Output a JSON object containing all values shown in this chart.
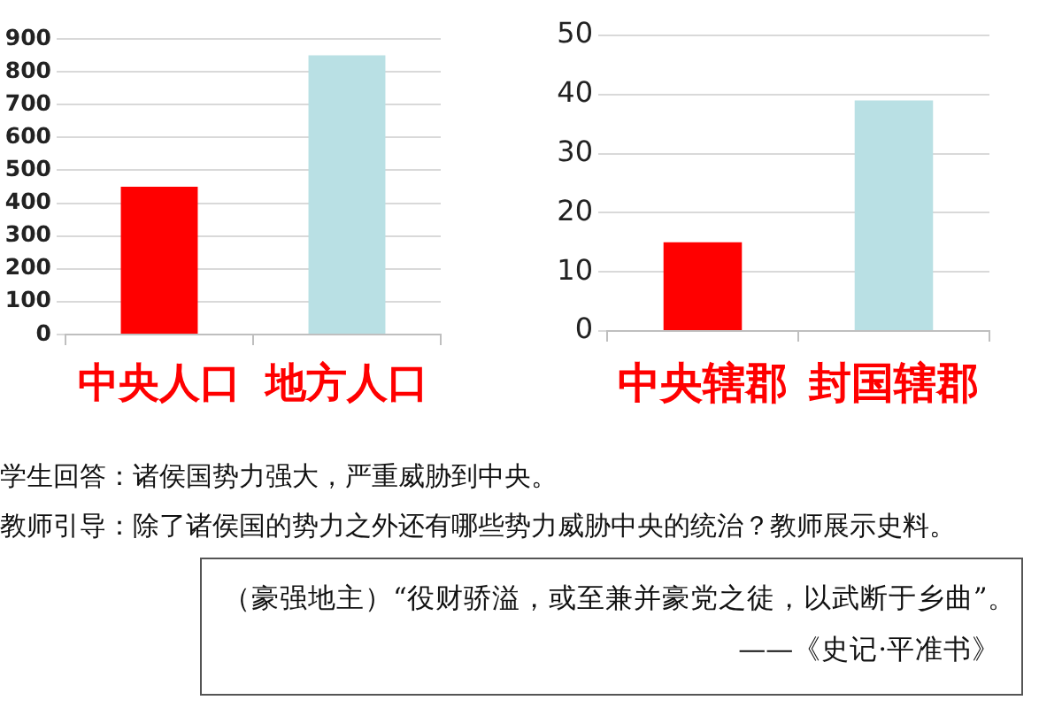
{
  "chart_data": [
    {
      "type": "bar",
      "categories": [
        "中央人口",
        "地方人口"
      ],
      "values": [
        450,
        850
      ],
      "colors": [
        "#ff0000",
        "#b9e0e4"
      ],
      "ylim": [
        0,
        900
      ],
      "yticks": [
        0,
        100,
        200,
        300,
        400,
        500,
        600,
        700,
        800,
        900
      ],
      "grid": "y"
    },
    {
      "type": "bar",
      "categories": [
        "中央辖郡",
        "封国辖郡"
      ],
      "values": [
        15,
        39
      ],
      "colors": [
        "#ff0000",
        "#b9e0e4"
      ],
      "ylim": [
        0,
        50
      ],
      "yticks": [
        0,
        10,
        20,
        30,
        40,
        50
      ],
      "grid": "y"
    },
    {
      "type": "other",
      "annotations": [
        "学生回答：诸侯国势力强大，严重威胁到中央。",
        "教师引导：除了诸侯国的势力之外还有哪些势力威胁中央的统治？教师展示史料。"
      ]
    },
    {
      "type": "other",
      "annotations": [
        "（豪强地主）“役财骄溢，或至兼并豪党之徒，以武断于乡曲”。",
        "——《史记·平准书》"
      ]
    }
  ]
}
